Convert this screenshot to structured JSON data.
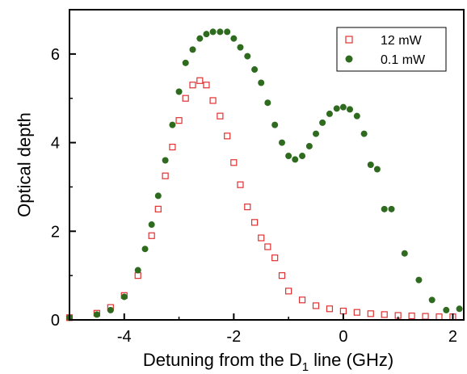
{
  "chart_data": {
    "type": "scatter",
    "title": "",
    "xlabel_main": "Detuning from the D",
    "xlabel_sub": "1",
    "xlabel_tail": " line (GHz)",
    "ylabel": "Optical depth",
    "xlim": [
      -5,
      2.2
    ],
    "ylim": [
      0,
      7
    ],
    "xticks": [
      -4,
      -2,
      0,
      2
    ],
    "yticks": [
      0,
      2,
      4,
      6
    ],
    "grid": false,
    "legend_position": "top-right",
    "series": [
      {
        "name": "12 mW",
        "marker": "open-square",
        "color": "#e03030",
        "x": [
          -5.0,
          -4.5,
          -4.25,
          -4.0,
          -3.75,
          -3.5,
          -3.38,
          -3.25,
          -3.12,
          -3.0,
          -2.88,
          -2.75,
          -2.62,
          -2.5,
          -2.38,
          -2.25,
          -2.12,
          -2.0,
          -1.88,
          -1.75,
          -1.62,
          -1.5,
          -1.38,
          -1.25,
          -1.12,
          -1.0,
          -0.75,
          -0.5,
          -0.25,
          0.0,
          0.25,
          0.5,
          0.75,
          1.0,
          1.25,
          1.5,
          1.75,
          2.0
        ],
        "y": [
          0.05,
          0.15,
          0.28,
          0.55,
          1.0,
          1.9,
          2.5,
          3.25,
          3.9,
          4.5,
          5.0,
          5.3,
          5.4,
          5.3,
          4.95,
          4.6,
          4.15,
          3.55,
          3.05,
          2.55,
          2.2,
          1.85,
          1.65,
          1.4,
          1.0,
          0.65,
          0.45,
          0.32,
          0.25,
          0.2,
          0.17,
          0.14,
          0.12,
          0.1,
          0.09,
          0.08,
          0.07,
          0.07
        ]
      },
      {
        "name": "0.1 mW",
        "marker": "filled-circle",
        "color": "#2e6b1f",
        "x": [
          -5.0,
          -4.5,
          -4.25,
          -4.0,
          -3.75,
          -3.62,
          -3.5,
          -3.38,
          -3.25,
          -3.12,
          -3.0,
          -2.88,
          -2.75,
          -2.62,
          -2.5,
          -2.38,
          -2.25,
          -2.12,
          -2.0,
          -1.88,
          -1.75,
          -1.62,
          -1.5,
          -1.38,
          -1.25,
          -1.12,
          -1.0,
          -0.88,
          -0.75,
          -0.62,
          -0.5,
          -0.38,
          -0.25,
          -0.12,
          0.0,
          0.12,
          0.25,
          0.38,
          0.5,
          0.62,
          0.75,
          0.88,
          1.12,
          1.38,
          1.62,
          1.88,
          2.12
        ],
        "y": [
          0.05,
          0.12,
          0.22,
          0.52,
          1.12,
          1.6,
          2.15,
          2.8,
          3.6,
          4.4,
          5.15,
          5.8,
          6.1,
          6.35,
          6.45,
          6.5,
          6.5,
          6.5,
          6.35,
          6.15,
          5.95,
          5.65,
          5.35,
          4.9,
          4.4,
          4.0,
          3.7,
          3.62,
          3.7,
          3.92,
          4.2,
          4.45,
          4.65,
          4.77,
          4.8,
          4.75,
          4.6,
          4.2,
          3.5,
          3.4,
          2.5,
          2.5,
          1.5,
          0.9,
          0.45,
          0.22,
          0.25
        ]
      }
    ]
  }
}
